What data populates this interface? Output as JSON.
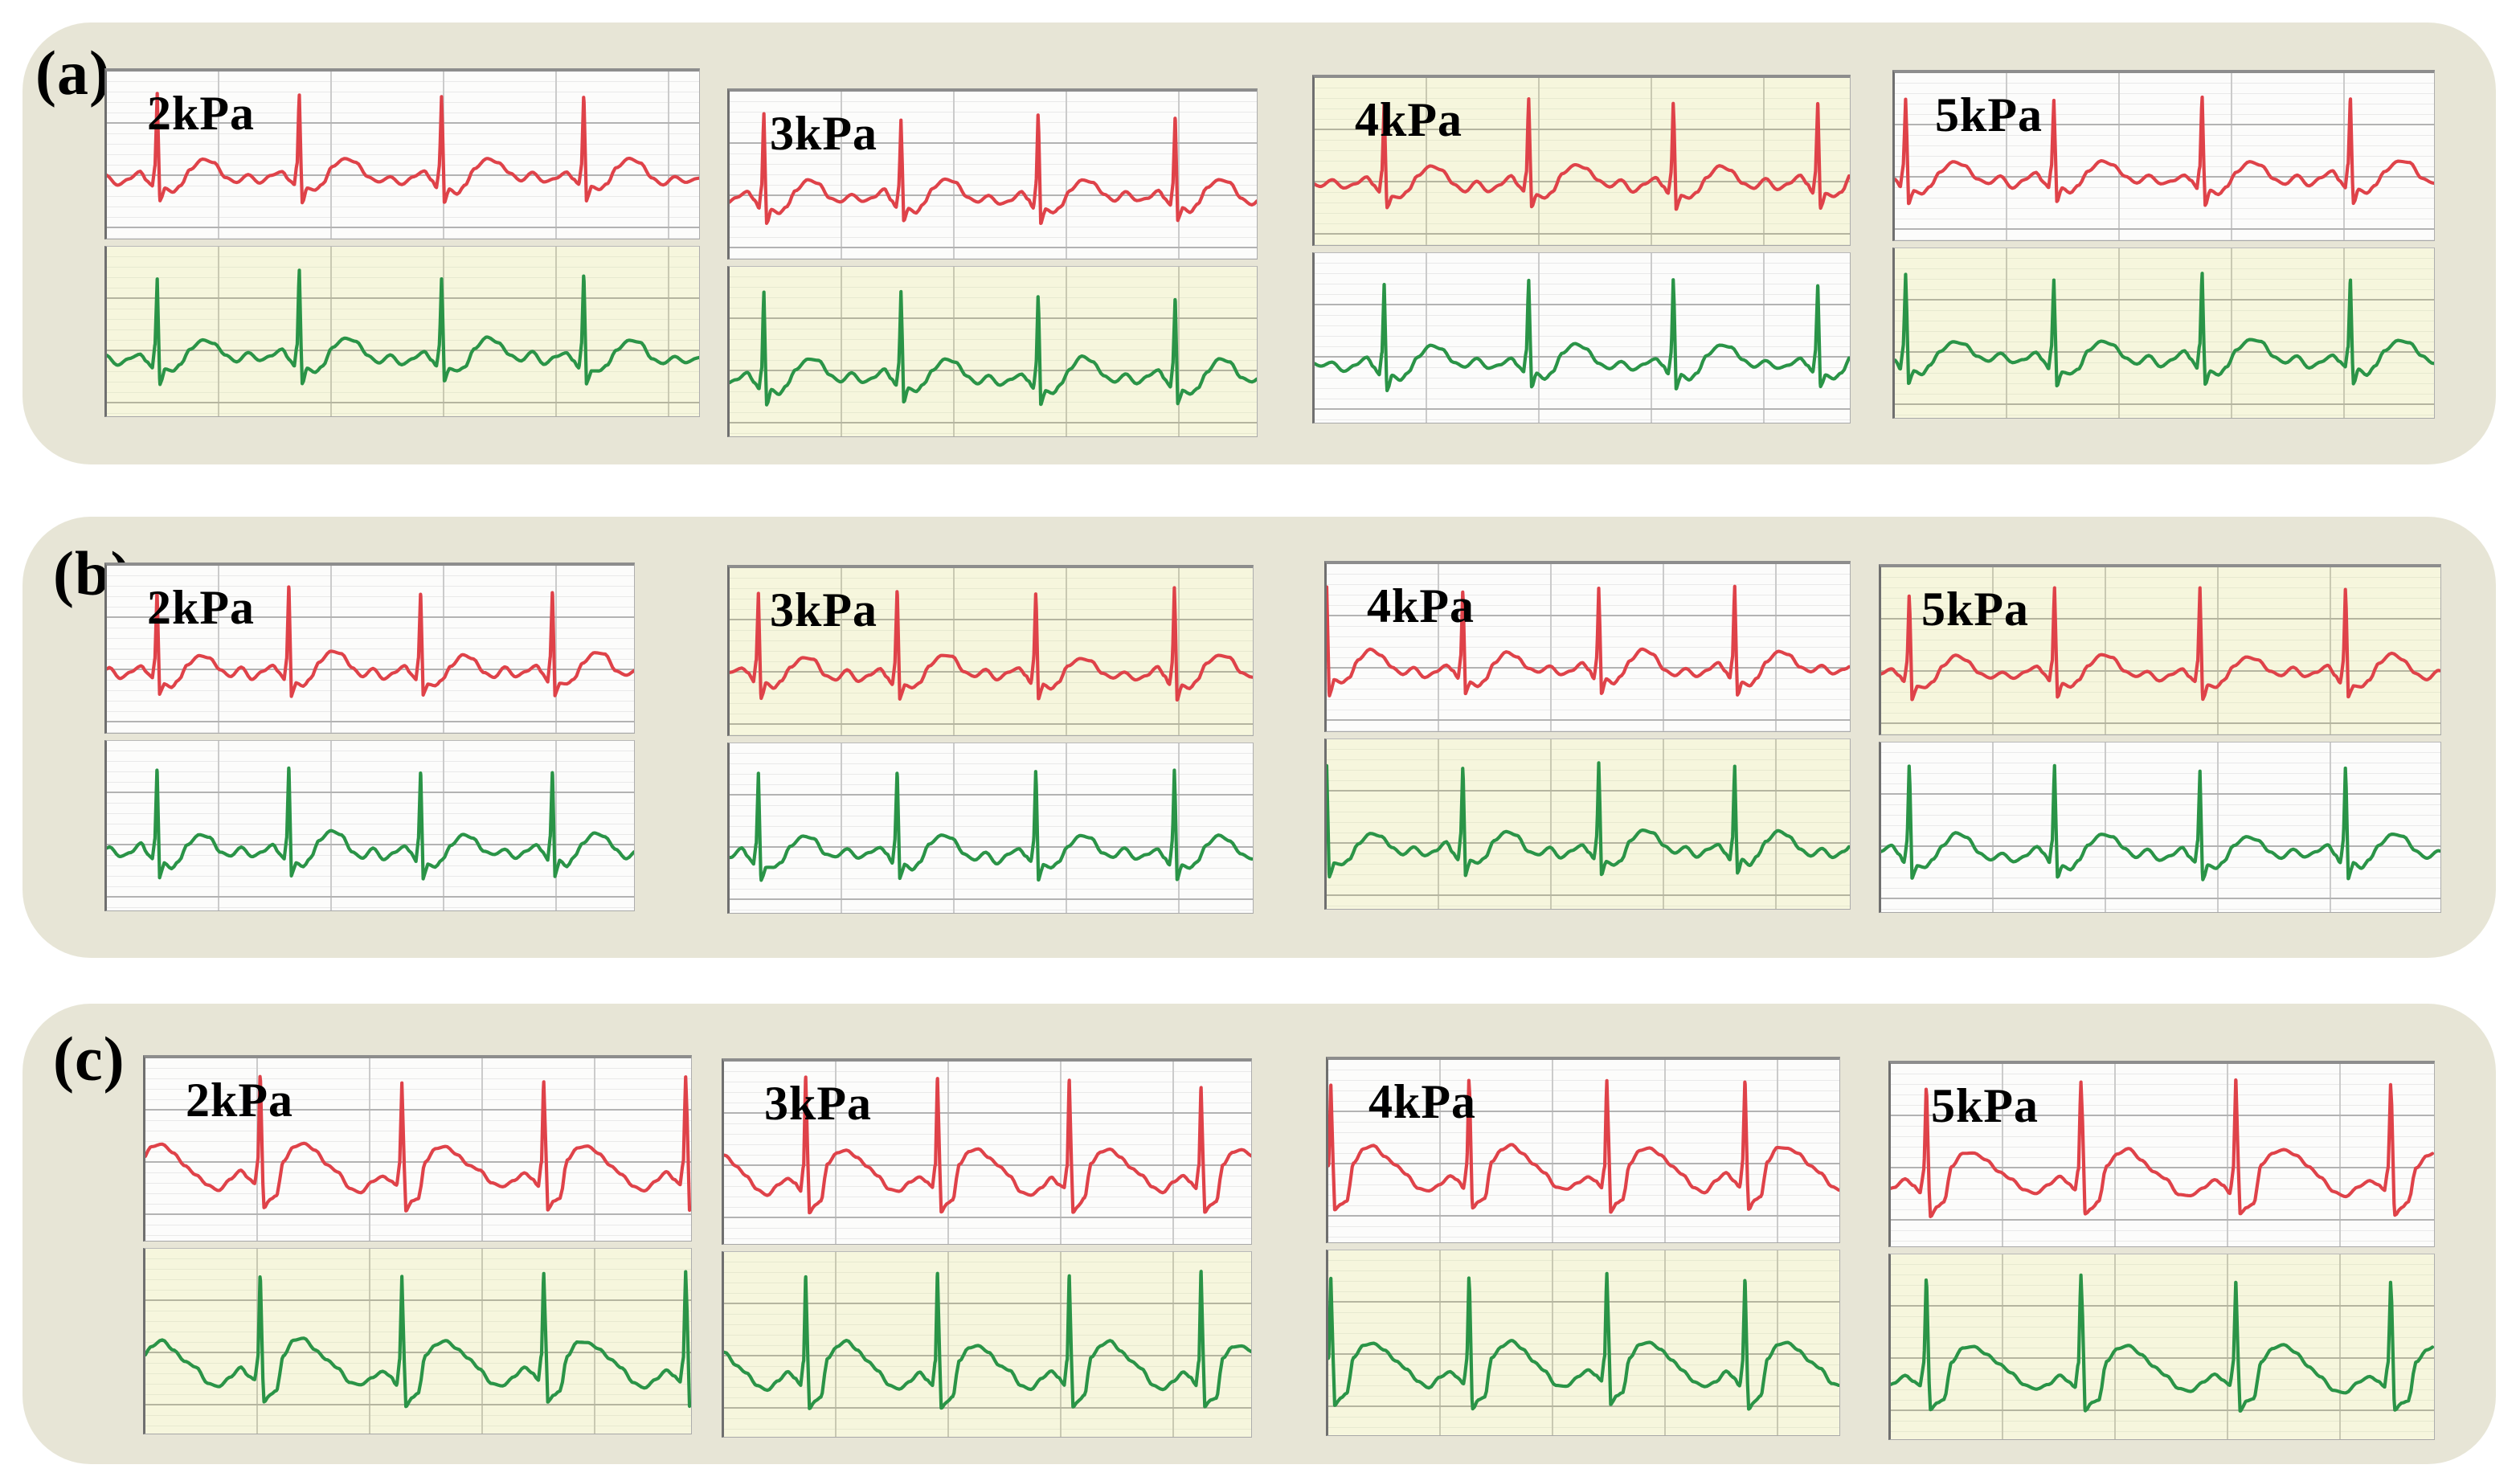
{
  "colors": {
    "page_bg": "#ffffff",
    "card_bg": "#e7e5d6",
    "panel_white_bg": "#fcfcfb",
    "panel_yellow_bg": "#f6f6dd",
    "grid_minor_white": "#e9e9e9",
    "grid_major_white": "#b3b3b3",
    "grid_vertical_white": "#cbcbcb",
    "grid_minor_yellow": "#e7e9d0",
    "grid_major_yellow": "#b5b5a0",
    "grid_vertical_yellow": "#c9c9b2",
    "axis_line": "#6f6f6f",
    "trace_red": "#df4249",
    "trace_green": "#2a9447",
    "label_text": "#000000"
  },
  "chart_data": {
    "type": "line",
    "description": "Three groups of ECG-style waveform recordings, labeled (a), (b) and (c). Each group contains four chart panels recorded at pressures 2kPa, 3kPa, 4kPa and 5kPa. Every panel shows two synchronized heartbeat traces on ruled recorder paper: a red trace in the upper strip and a green trace in the lower strip. Strip backgrounds are either white or pale yellow. Rows (a) and (b) show narrow fast beats; row (c) shows wider, slower beats with broad T-waves. No numeric axis tick labels, legends or scales are printed.",
    "legend": "none",
    "axis_tick_labels": "none",
    "series_per_panel": [
      {
        "name": "red ECG trace",
        "position": "top strip",
        "color": "#df4249"
      },
      {
        "name": "green ECG trace",
        "position": "bottom strip",
        "color": "#2a9447"
      }
    ],
    "rows": [
      {
        "tag": "(a)",
        "panels": [
          {
            "label": "2kPa",
            "top_bg": "white",
            "bottom_bg": "yellow",
            "style": "fast",
            "beats": 4,
            "first_beat": 0.085,
            "beat_period": 0.24
          },
          {
            "label": "3kPa",
            "top_bg": "white",
            "bottom_bg": "yellow",
            "style": "fast",
            "beats": 4,
            "first_beat": 0.065,
            "beat_period": 0.26
          },
          {
            "label": "4kPa",
            "top_bg": "yellow",
            "bottom_bg": "white",
            "style": "fast",
            "beats": 4,
            "first_beat": 0.13,
            "beat_period": 0.27
          },
          {
            "label": "5kPa",
            "top_bg": "white",
            "bottom_bg": "yellow",
            "style": "fast",
            "beats": 4,
            "first_beat": 0.02,
            "beat_period": 0.275
          }
        ]
      },
      {
        "tag": "(b)",
        "panels": [
          {
            "label": "2kPa",
            "top_bg": "white",
            "bottom_bg": "white",
            "style": "fast",
            "beats": 4,
            "first_beat": 0.095,
            "beat_period": 0.25
          },
          {
            "label": "3kPa",
            "top_bg": "yellow",
            "bottom_bg": "white",
            "style": "fast",
            "beats": 4,
            "first_beat": 0.055,
            "beat_period": 0.265
          },
          {
            "label": "4kPa",
            "top_bg": "white",
            "bottom_bg": "yellow",
            "style": "fast",
            "beats": 4,
            "first_beat": 0.0,
            "beat_period": 0.26
          },
          {
            "label": "5kPa",
            "top_bg": "yellow",
            "bottom_bg": "white",
            "style": "fast",
            "beats": 4,
            "first_beat": 0.05,
            "beat_period": 0.26
          }
        ]
      },
      {
        "tag": "(c)",
        "panels": [
          {
            "label": "2kPa",
            "top_bg": "white",
            "bottom_bg": "yellow",
            "style": "wide",
            "beats": 3,
            "first_beat": 0.21,
            "beat_period": 0.26
          },
          {
            "label": "3kPa",
            "top_bg": "white",
            "bottom_bg": "yellow",
            "style": "wide",
            "beats": 4,
            "first_beat": 0.155,
            "beat_period": 0.25
          },
          {
            "label": "4kPa",
            "top_bg": "white",
            "bottom_bg": "yellow",
            "style": "wide",
            "beats": 4,
            "first_beat": 0.005,
            "beat_period": 0.27
          },
          {
            "label": "5kPa",
            "top_bg": "white",
            "bottom_bg": "yellow",
            "style": "wide",
            "beats": 4,
            "first_beat": 0.065,
            "beat_period": 0.285
          }
        ]
      }
    ]
  }
}
